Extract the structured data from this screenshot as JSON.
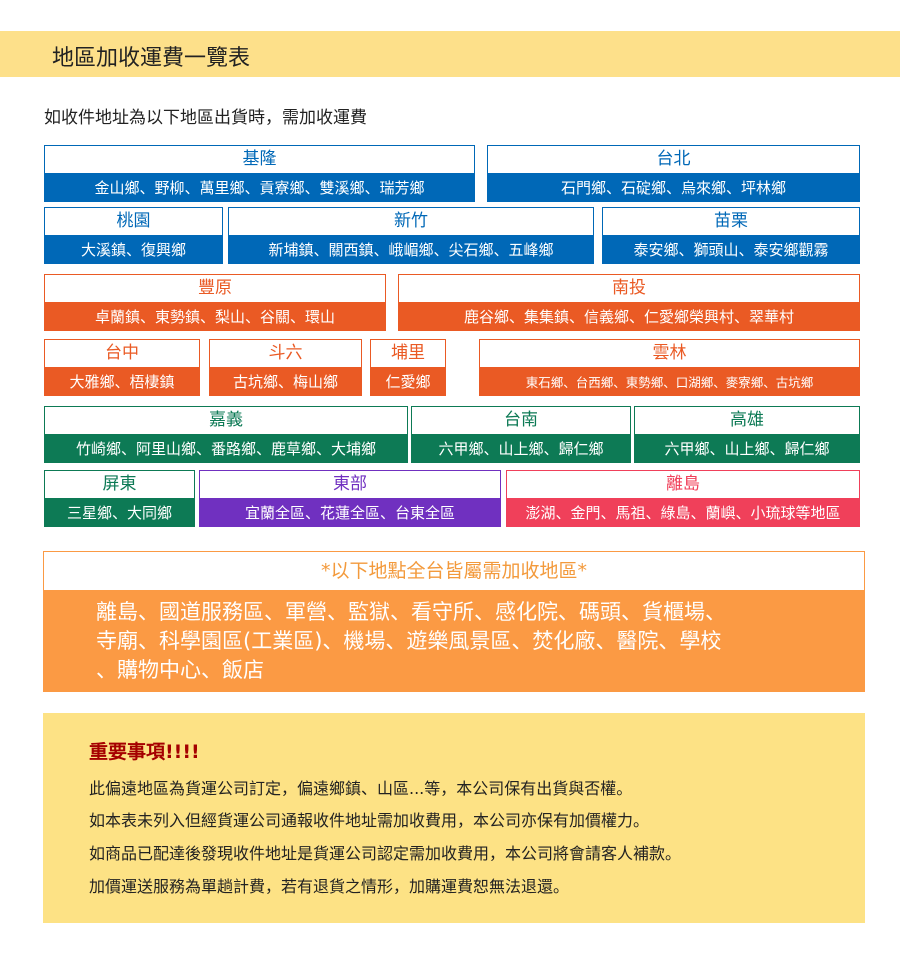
{
  "title": "地區加收運費一覽表",
  "intro": "如收件地址為以下地區出貨時，需加收運費",
  "colors": {
    "blue": "#0068b7",
    "orange": "#ea5a24",
    "green": "#0d7a55",
    "purple": "#7030c0",
    "red": "#f0405a"
  },
  "regions": [
    {
      "name": "基隆",
      "areas": "金山鄉、野柳、萬里鄉、貢寮鄉、雙溪鄉、瑞芳鄉",
      "color": "blue"
    },
    {
      "name": "台北",
      "areas": "石門鄉、石碇鄉、烏來鄉、坪林鄉",
      "color": "blue"
    },
    {
      "name": "桃園",
      "areas": "大溪鎮、復興鄉",
      "color": "blue"
    },
    {
      "name": "新竹",
      "areas": "新埔鎮、關西鎮、峨嵋鄉、尖石鄉、五峰鄉",
      "color": "blue"
    },
    {
      "name": "苗栗",
      "areas": "泰安鄉、獅頭山、泰安鄉觀霧",
      "color": "blue"
    },
    {
      "name": "豐原",
      "areas": "卓蘭鎮、東勢鎮、梨山、谷關、環山",
      "color": "orange"
    },
    {
      "name": "南投",
      "areas": "鹿谷鄉、集集鎮、信義鄉、仁愛鄉榮興村、翠華村",
      "color": "orange"
    },
    {
      "name": "台中",
      "areas": "大雅鄉、梧棲鎮",
      "color": "orange"
    },
    {
      "name": "斗六",
      "areas": "古坑鄉、梅山鄉",
      "color": "orange"
    },
    {
      "name": "埔里",
      "areas": "仁愛鄉",
      "color": "orange"
    },
    {
      "name": "雲林",
      "areas": "東石鄉、台西鄉、東勢鄉、口湖鄉、麥寮鄉、古坑鄉",
      "color": "orange"
    },
    {
      "name": "嘉義",
      "areas": "竹崎鄉、阿里山鄉、番路鄉、鹿草鄉、大埔鄉",
      "color": "green"
    },
    {
      "name": "台南",
      "areas": "六甲鄉、山上鄉、歸仁鄉",
      "color": "green"
    },
    {
      "name": "高雄",
      "areas": "六甲鄉、山上鄉、歸仁鄉",
      "color": "green"
    },
    {
      "name": "屏東",
      "areas": "三星鄉、大同鄉",
      "color": "green"
    },
    {
      "name": "東部",
      "areas": "宜蘭全區、花蓮全區、台東全區",
      "color": "purple"
    },
    {
      "name": "離島",
      "areas": "澎湖、金門、馬祖、綠島、蘭嶼、小琉球等地區",
      "color": "red"
    }
  ],
  "special": {
    "heading": "*以下地點全台皆屬需加收地區*",
    "lines": [
      "離島、國道服務區、軍營、監獄、看守所、感化院、碼頭、貨櫃場、",
      "寺廟、科學園區(工業區)、機場、遊樂風景區、焚化廠、醫院、學校",
      "、購物中心、飯店"
    ]
  },
  "notice": {
    "title": "重要事項!!!!",
    "lines": [
      "此偏遠地區為貨運公司訂定，偏遠鄉鎮、山區...等，本公司保有出貨與否權。",
      "如本表未列入但經貨運公司通報收件地址需加收費用，本公司亦保有加價權力。",
      "如商品已配達後發現收件地址是貨運公司認定需加收費用，本公司將會請客人補款。",
      "加價運送服務為單趟計費，若有退貨之情形，加購運費恕無法退還。"
    ]
  }
}
